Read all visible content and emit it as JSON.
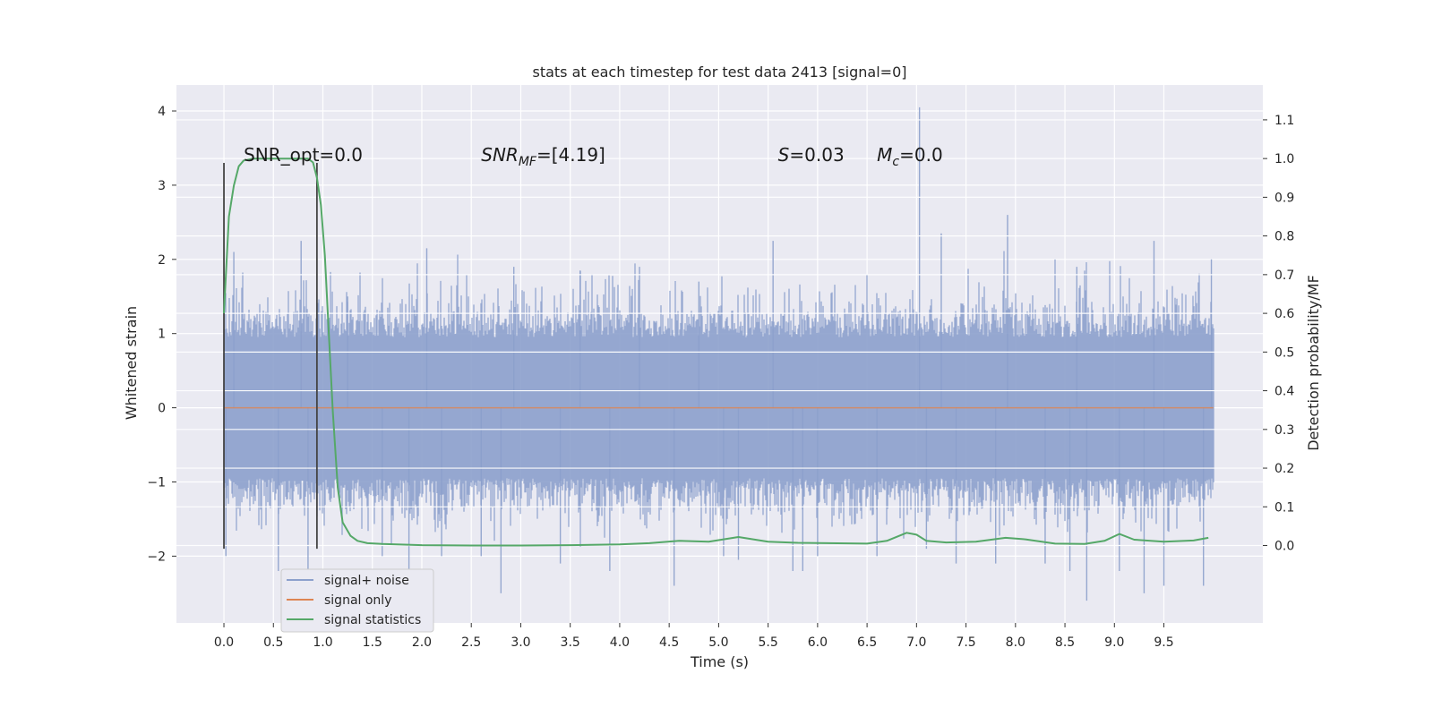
{
  "chart_data": {
    "type": "line",
    "title": "stats at each timestep for test data 2413 [signal=0]",
    "xlabel": "Time (s)",
    "ylabel": "Whitened strain",
    "ylabel_right": "Detection probability/MF",
    "xlim": [
      -0.48,
      10.5
    ],
    "ylim": [
      -2.9,
      4.35
    ],
    "ylim_right": [
      -0.2,
      1.19
    ],
    "x_ticks": [
      "0.0",
      "0.5",
      "1.0",
      "1.5",
      "2.0",
      "2.5",
      "3.0",
      "3.5",
      "4.0",
      "4.5",
      "5.0",
      "5.5",
      "6.0",
      "6.5",
      "7.0",
      "7.5",
      "8.0",
      "8.5",
      "9.0",
      "9.5"
    ],
    "y_ticks_left": [
      "−2",
      "−1",
      "0",
      "1",
      "2",
      "3",
      "4"
    ],
    "y_ticks_right": [
      "0.0",
      "0.1",
      "0.2",
      "0.3",
      "0.4",
      "0.5",
      "0.6",
      "0.7",
      "0.8",
      "0.9",
      "1.0",
      "1.1"
    ],
    "grid": true,
    "legend_position": "lower-left",
    "annotations": [
      {
        "x": 0.2,
        "text": "SNR_opt=0.0"
      },
      {
        "x": 2.6,
        "main": "SNR",
        "sub": "MF",
        "rest": "=[4.19]"
      },
      {
        "x": 5.6,
        "main": "S",
        "rest": "=0.03"
      },
      {
        "x": 6.6,
        "main": "M",
        "sub": "c",
        "rest": "=0.0"
      }
    ],
    "markers": {
      "x": [
        0.0,
        0.94
      ],
      "y_range": [
        -1.9,
        3.3
      ]
    },
    "series": [
      {
        "name": "signal+ noise",
        "color": "#8ca0cc",
        "axis": "left",
        "x_range": [
          0.0,
          10.0
        ],
        "band_upper": 1.7,
        "band_lower": -1.6,
        "peaks": [
          [
            0.02,
            -2.0
          ],
          [
            0.1,
            2.1
          ],
          [
            0.55,
            -2.2
          ],
          [
            0.78,
            2.25
          ],
          [
            0.85,
            -2.5
          ],
          [
            1.25,
            1.5
          ],
          [
            1.6,
            -2.0
          ],
          [
            1.87,
            -2.3
          ],
          [
            2.05,
            2.15
          ],
          [
            2.2,
            -2.0
          ],
          [
            2.6,
            -2.0
          ],
          [
            2.8,
            -2.5
          ],
          [
            2.93,
            1.9
          ],
          [
            3.4,
            -2.1
          ],
          [
            3.6,
            1.85
          ],
          [
            3.9,
            -2.2
          ],
          [
            4.2,
            1.9
          ],
          [
            4.55,
            -2.4
          ],
          [
            4.8,
            1.7
          ],
          [
            5.05,
            -2.0
          ],
          [
            5.2,
            -2.05
          ],
          [
            5.55,
            2.25
          ],
          [
            5.75,
            -2.2
          ],
          [
            5.85,
            -2.2
          ],
          [
            6.0,
            -2.0
          ],
          [
            6.6,
            -2.0
          ],
          [
            7.03,
            4.05
          ],
          [
            7.1,
            -1.9
          ],
          [
            7.25,
            2.35
          ],
          [
            7.4,
            -2.1
          ],
          [
            7.8,
            -2.1
          ],
          [
            7.92,
            2.6
          ],
          [
            8.3,
            -2.1
          ],
          [
            8.55,
            -2.2
          ],
          [
            8.62,
            1.9
          ],
          [
            8.72,
            -2.6
          ],
          [
            9.05,
            -2.2
          ],
          [
            9.3,
            -2.5
          ],
          [
            9.4,
            2.25
          ],
          [
            9.5,
            -2.4
          ],
          [
            9.9,
            -2.4
          ],
          [
            9.98,
            2.0
          ]
        ]
      },
      {
        "name": "signal only",
        "color": "#dd8452",
        "axis": "left",
        "x": [
          0.0,
          10.0
        ],
        "y": [
          0.0,
          0.0
        ]
      },
      {
        "name": "signal statistics",
        "color": "#55a868",
        "axis": "right",
        "x": [
          0.0,
          0.05,
          0.1,
          0.15,
          0.2,
          0.3,
          0.45,
          0.6,
          0.75,
          0.85,
          0.9,
          0.94,
          0.98,
          1.02,
          1.06,
          1.1,
          1.15,
          1.2,
          1.28,
          1.35,
          1.45,
          1.6,
          2.0,
          2.5,
          3.0,
          3.5,
          4.0,
          4.3,
          4.6,
          4.9,
          5.2,
          5.5,
          5.8,
          6.1,
          6.5,
          6.7,
          6.9,
          7.0,
          7.1,
          7.3,
          7.6,
          7.9,
          8.1,
          8.4,
          8.7,
          8.9,
          9.05,
          9.2,
          9.5,
          9.8,
          9.95
        ],
        "y": [
          0.6,
          0.85,
          0.93,
          0.98,
          0.995,
          1.0,
          1.0,
          1.0,
          1.0,
          1.0,
          0.99,
          0.95,
          0.88,
          0.75,
          0.55,
          0.35,
          0.15,
          0.06,
          0.025,
          0.012,
          0.006,
          0.004,
          0.001,
          0.0,
          0.0,
          0.001,
          0.003,
          0.006,
          0.012,
          0.01,
          0.022,
          0.01,
          0.007,
          0.006,
          0.005,
          0.012,
          0.033,
          0.028,
          0.012,
          0.008,
          0.01,
          0.02,
          0.016,
          0.005,
          0.004,
          0.012,
          0.03,
          0.015,
          0.01,
          0.013,
          0.02
        ]
      }
    ]
  }
}
